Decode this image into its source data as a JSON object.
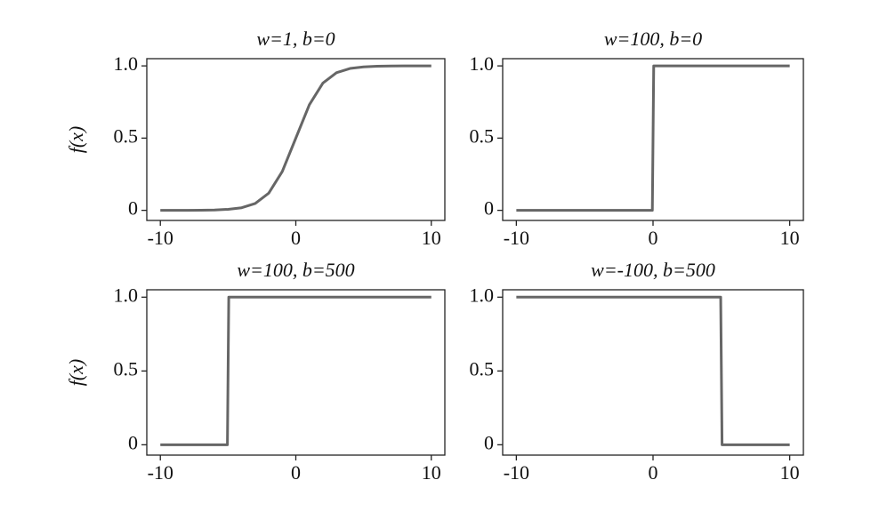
{
  "chart_data": [
    {
      "type": "line",
      "title": "w=1,  b=0",
      "ylabel": "f(x)",
      "x": [
        -10,
        -9,
        -8,
        -7,
        -6,
        -5,
        -4,
        -3,
        -2,
        -1,
        0,
        1,
        2,
        3,
        4,
        5,
        6,
        7,
        8,
        9,
        10
      ],
      "values": [
        0,
        0,
        0,
        0.001,
        0.002,
        0.007,
        0.018,
        0.047,
        0.119,
        0.269,
        0.5,
        0.731,
        0.881,
        0.953,
        0.982,
        0.993,
        0.998,
        0.999,
        1,
        1,
        1
      ],
      "color": "#666666",
      "xlim": [
        -11,
        11
      ],
      "ylim": [
        -0.07,
        1.05
      ],
      "xticks": [
        -10,
        0,
        10
      ],
      "yticks": [
        0,
        0.5,
        {
          "value": 1,
          "label": "1.0"
        }
      ]
    },
    {
      "type": "line",
      "title": "w=100,  b=0",
      "x": [
        -10,
        -0.05,
        0.05,
        10
      ],
      "values": [
        0,
        0,
        1,
        1
      ],
      "color": "#666666",
      "xlim": [
        -11,
        11
      ],
      "ylim": [
        -0.07,
        1.05
      ],
      "xticks": [
        -10,
        0,
        10
      ],
      "yticks": [
        0,
        0.5,
        {
          "value": 1,
          "label": "1.0"
        }
      ]
    },
    {
      "type": "line",
      "title": "w=100,  b=500",
      "ylabel": "f(x)",
      "x": [
        -10,
        -5.05,
        -4.95,
        10
      ],
      "values": [
        0,
        0,
        1,
        1
      ],
      "color": "#666666",
      "xlim": [
        -11,
        11
      ],
      "ylim": [
        -0.07,
        1.05
      ],
      "xticks": [
        -10,
        0,
        10
      ],
      "yticks": [
        0,
        0.5,
        {
          "value": 1,
          "label": "1.0"
        }
      ]
    },
    {
      "type": "line",
      "title": "w=-100,  b=500",
      "x": [
        -10,
        4.95,
        5.05,
        10
      ],
      "values": [
        1,
        1,
        0,
        0
      ],
      "color": "#666666",
      "xlim": [
        -11,
        11
      ],
      "ylim": [
        -0.07,
        1.05
      ],
      "xticks": [
        -10,
        0,
        10
      ],
      "yticks": [
        0,
        0.5,
        {
          "value": 1,
          "label": "1.0"
        }
      ]
    }
  ]
}
